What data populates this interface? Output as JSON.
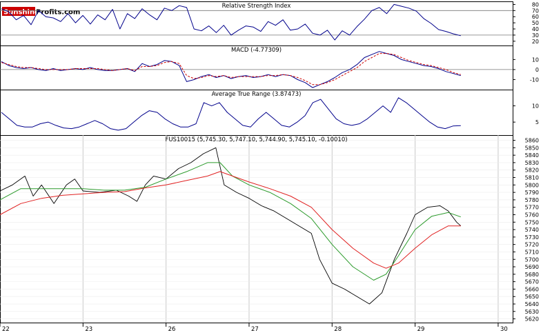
{
  "logo": {
    "part1": "Sunshine",
    "part2": "Profits.com",
    "color1": "#cc0000",
    "color2": "#000000"
  },
  "chart_data": [
    {
      "type": "line",
      "title": "Relative Strength Index",
      "ylim": [
        13,
        85
      ],
      "ticks": [
        20,
        30,
        40,
        50,
        60,
        70,
        80
      ],
      "ref_lines": [
        30,
        70
      ],
      "grid": false,
      "series": [
        {
          "color": "#00008b",
          "values": [
            73,
            68,
            55,
            62,
            47,
            70,
            60,
            58,
            52,
            65,
            50,
            62,
            48,
            63,
            55,
            72,
            40,
            65,
            57,
            73,
            63,
            55,
            74,
            70,
            78,
            75,
            40,
            37,
            45,
            34,
            46,
            30,
            38,
            45,
            43,
            36,
            52,
            46,
            55,
            38,
            40,
            48,
            33,
            30,
            38,
            22,
            37,
            30,
            44,
            56,
            70,
            75,
            65,
            80,
            77,
            74,
            69,
            57,
            49,
            39,
            36,
            32,
            29
          ]
        }
      ]
    },
    {
      "type": "line",
      "title": "MACD (-4.77309)",
      "ylim": [
        -20,
        24
      ],
      "ticks": [
        -10,
        0,
        10
      ],
      "ref_lines": [
        0
      ],
      "grid": false,
      "series": [
        {
          "color": "#00008b",
          "values": [
            8,
            4,
            2,
            1,
            2,
            0,
            -1,
            1,
            -1,
            0,
            1,
            0,
            2,
            0,
            -1,
            -1,
            0,
            1,
            -2,
            6,
            3,
            5,
            9,
            8,
            4,
            -12,
            -10,
            -7,
            -5,
            -8,
            -6,
            -9,
            -7,
            -6,
            -8,
            -7,
            -5,
            -7,
            -5,
            -6,
            -10,
            -13,
            -18,
            -15,
            -12,
            -8,
            -3,
            0,
            5,
            12,
            15,
            18,
            16,
            14,
            10,
            8,
            6,
            4,
            3,
            1,
            -2,
            -4,
            -6
          ]
        },
        {
          "color": "#cc0000",
          "dashed": true,
          "values": [
            7,
            5,
            3,
            2,
            2,
            1,
            0,
            0,
            0,
            0,
            1,
            1,
            1,
            1,
            0,
            -1,
            0,
            1,
            -1,
            3,
            3,
            4,
            7,
            8,
            6,
            -6,
            -9,
            -8,
            -6,
            -7,
            -6,
            -8,
            -7,
            -7,
            -7,
            -7,
            -6,
            -6,
            -5,
            -6,
            -8,
            -11,
            -15,
            -15,
            -13,
            -10,
            -6,
            -2,
            2,
            8,
            12,
            16,
            16,
            15,
            12,
            9,
            7,
            5,
            4,
            2,
            0,
            -3,
            -5
          ]
        }
      ]
    },
    {
      "type": "line",
      "title": "Average True Range (3.87473)",
      "ylim": [
        1,
        15
      ],
      "ticks": [
        5,
        10
      ],
      "grid": false,
      "series": [
        {
          "color": "#00008b",
          "values": [
            8,
            6,
            4,
            3.5,
            3.5,
            4.5,
            5,
            4,
            3.2,
            3,
            3.5,
            4.5,
            5.5,
            4.5,
            3,
            2.5,
            3,
            5,
            7,
            8.5,
            8,
            6,
            4.5,
            3.5,
            3.5,
            4.5,
            11,
            10,
            11,
            8,
            6,
            4,
            3.5,
            6,
            8,
            6,
            4,
            3.5,
            5,
            7,
            11,
            12,
            9,
            6,
            4.5,
            4,
            4.5,
            6,
            8,
            10,
            8,
            12.5,
            11,
            9,
            7,
            5,
            3.5,
            3,
            3.8,
            3.9
          ]
        }
      ]
    },
    {
      "type": "line",
      "title": "FUS10015 (5,745.30, 5,747.10, 5,744.90, 5,745.10, -0.10010)",
      "ylim": [
        5615,
        5867
      ],
      "ticks": [
        5620,
        5630,
        5640,
        5650,
        5660,
        5670,
        5680,
        5690,
        5700,
        5710,
        5720,
        5730,
        5740,
        5750,
        5760,
        5770,
        5780,
        5790,
        5800,
        5810,
        5820,
        5830,
        5840,
        5850,
        5860
      ],
      "x_ticks": [
        {
          "label": "22",
          "pos": 0
        },
        {
          "label": "23",
          "pos": 0.2
        },
        {
          "label": "26",
          "pos": 0.4
        },
        {
          "label": "27",
          "pos": 0.6
        },
        {
          "label": "28",
          "pos": 0.8
        },
        {
          "label": "29",
          "pos": 1.0
        },
        {
          "label": "30",
          "pos": 1.2
        }
      ],
      "x_range": [
        0,
        1.235
      ],
      "grid": true,
      "series": [
        {
          "name": "",
          "color": "#000000",
          "width": 0.9,
          "points": [
            [
              0,
              5792
            ],
            [
              0.03,
              5800
            ],
            [
              0.06,
              5812
            ],
            [
              0.08,
              5785
            ],
            [
              0.1,
              5800
            ],
            [
              0.13,
              5775
            ],
            [
              0.16,
              5800
            ],
            [
              0.18,
              5808
            ],
            [
              0.2,
              5792
            ],
            [
              0.24,
              5790
            ],
            [
              0.28,
              5793
            ],
            [
              0.31,
              5785
            ],
            [
              0.33,
              5778
            ],
            [
              0.35,
              5800
            ],
            [
              0.37,
              5812
            ],
            [
              0.4,
              5808
            ],
            [
              0.43,
              5822
            ],
            [
              0.46,
              5830
            ],
            [
              0.49,
              5842
            ],
            [
              0.52,
              5850
            ],
            [
              0.54,
              5800
            ],
            [
              0.57,
              5790
            ],
            [
              0.6,
              5782
            ],
            [
              0.63,
              5772
            ],
            [
              0.66,
              5765
            ],
            [
              0.69,
              5755
            ],
            [
              0.72,
              5745
            ],
            [
              0.75,
              5735
            ],
            [
              0.77,
              5700
            ],
            [
              0.8,
              5668
            ],
            [
              0.83,
              5660
            ],
            [
              0.86,
              5650
            ],
            [
              0.89,
              5640
            ],
            [
              0.92,
              5655
            ],
            [
              0.95,
              5700
            ],
            [
              0.98,
              5735
            ],
            [
              1.0,
              5760
            ],
            [
              1.03,
              5770
            ],
            [
              1.06,
              5772
            ],
            [
              1.08,
              5765
            ],
            [
              1.1,
              5750
            ],
            [
              1.11,
              5745
            ]
          ]
        },
        {
          "name": "",
          "color": "#2a9a2a",
          "width": 1.0,
          "points": [
            [
              0,
              5780
            ],
            [
              0.05,
              5795
            ],
            [
              0.1,
              5795
            ],
            [
              0.15,
              5795
            ],
            [
              0.2,
              5795
            ],
            [
              0.25,
              5793
            ],
            [
              0.3,
              5793
            ],
            [
              0.35,
              5797
            ],
            [
              0.4,
              5808
            ],
            [
              0.45,
              5818
            ],
            [
              0.5,
              5830
            ],
            [
              0.53,
              5830
            ],
            [
              0.56,
              5812
            ],
            [
              0.6,
              5800
            ],
            [
              0.65,
              5790
            ],
            [
              0.7,
              5775
            ],
            [
              0.75,
              5755
            ],
            [
              0.8,
              5720
            ],
            [
              0.85,
              5690
            ],
            [
              0.9,
              5672
            ],
            [
              0.93,
              5680
            ],
            [
              0.96,
              5705
            ],
            [
              1.0,
              5740
            ],
            [
              1.04,
              5758
            ],
            [
              1.08,
              5763
            ],
            [
              1.11,
              5757
            ]
          ]
        },
        {
          "name": "",
          "color": "#e02020",
          "width": 1.0,
          "points": [
            [
              0,
              5760
            ],
            [
              0.05,
              5775
            ],
            [
              0.1,
              5782
            ],
            [
              0.15,
              5786
            ],
            [
              0.2,
              5788
            ],
            [
              0.25,
              5790
            ],
            [
              0.3,
              5791
            ],
            [
              0.35,
              5796
            ],
            [
              0.4,
              5800
            ],
            [
              0.45,
              5806
            ],
            [
              0.5,
              5812
            ],
            [
              0.53,
              5818
            ],
            [
              0.56,
              5812
            ],
            [
              0.6,
              5804
            ],
            [
              0.65,
              5795
            ],
            [
              0.7,
              5785
            ],
            [
              0.75,
              5770
            ],
            [
              0.8,
              5740
            ],
            [
              0.85,
              5715
            ],
            [
              0.9,
              5695
            ],
            [
              0.93,
              5688
            ],
            [
              0.96,
              5695
            ],
            [
              1.0,
              5715
            ],
            [
              1.04,
              5733
            ],
            [
              1.08,
              5745
            ],
            [
              1.11,
              5745
            ]
          ]
        }
      ]
    }
  ]
}
